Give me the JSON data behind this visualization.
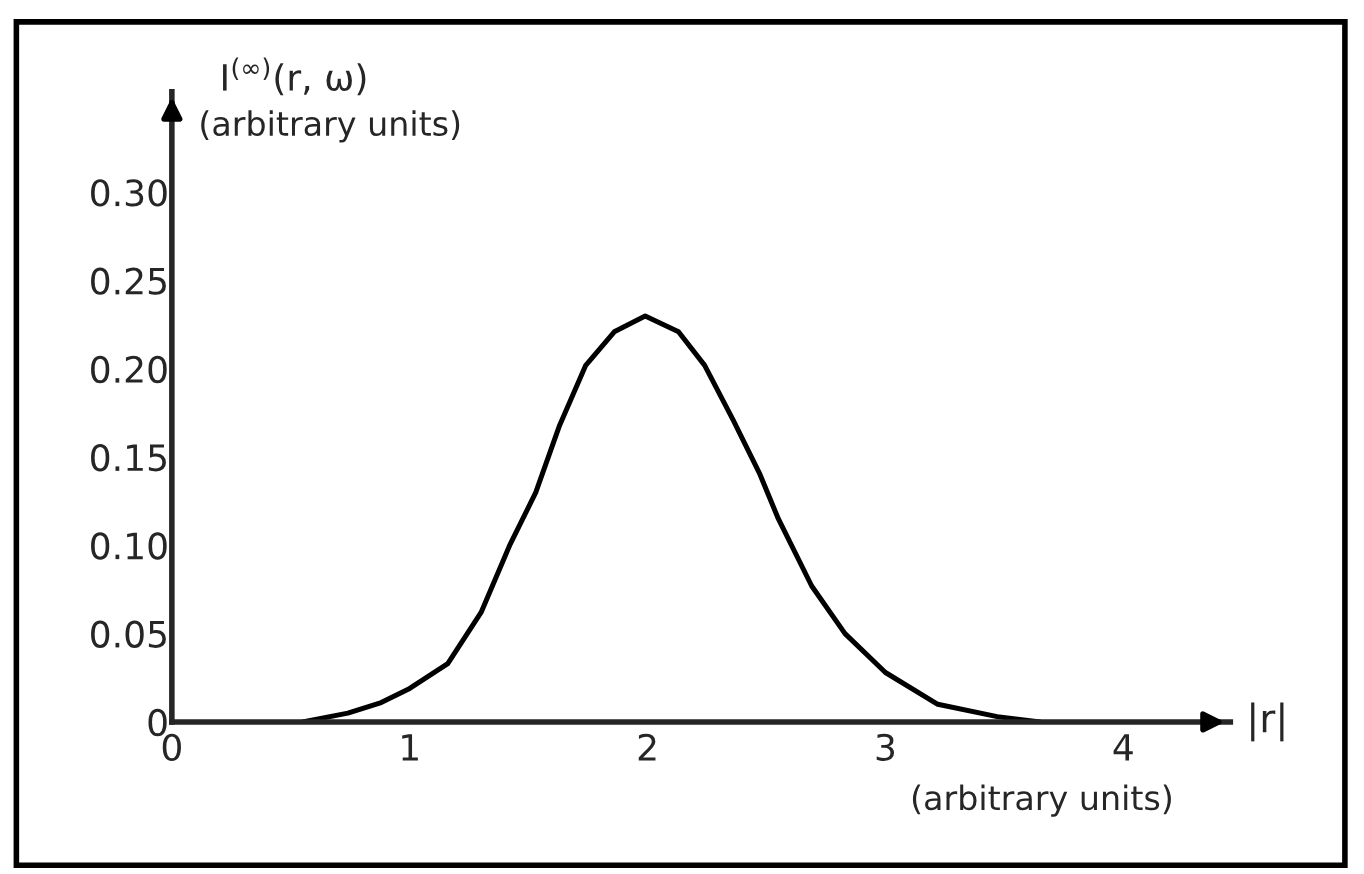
{
  "chart_data": {
    "type": "line",
    "xlabel": "|r|",
    "ylabel": "I$^{(∞)}$(r, ω)\n(arbitrary units)",
    "annotations": [
      "(arbitrary units)"
    ],
    "series": [
      {
        "color": "#000000",
        "x": [
          0.55,
          0.74,
          0.88,
          1.0,
          1.16,
          1.3,
          1.42,
          1.53,
          1.63,
          1.74,
          1.86,
          1.99,
          2.13,
          2.24,
          2.36,
          2.47,
          2.55,
          2.69,
          2.83,
          3.0,
          3.22,
          3.47,
          3.65
        ],
        "values": [
          0,
          0.005,
          0.011,
          0.019,
          0.033,
          0.062,
          0.1,
          0.13,
          0.168,
          0.202,
          0.221,
          0.23,
          0.221,
          0.202,
          0.171,
          0.141,
          0.115,
          0.077,
          0.05,
          0.028,
          0.01,
          0.003,
          0
        ]
      }
    ],
    "xlim": [
      0,
      4.45
    ],
    "ylim": [
      0,
      0.357
    ],
    "xticks": [
      0,
      1,
      2,
      3,
      4
    ],
    "yticks": [
      0,
      0.05,
      {
        "value": 0.1,
        "label": "0.10"
      },
      0.15,
      {
        "value": 0.2,
        "label": "0.20"
      },
      0.25,
      {
        "value": 0.3,
        "label": "0.30"
      }
    ],
    "line_style": "solid"
  }
}
